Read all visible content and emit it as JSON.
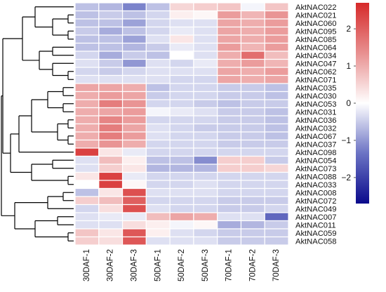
{
  "chart_data": {
    "type": "heatmap",
    "columns": [
      "30DAF-1",
      "30DAF-2",
      "30DAF-3",
      "50DAF-1",
      "50DAF-2",
      "50DAF-3",
      "70DAF-1",
      "70DAF-2",
      "70DAF-3"
    ],
    "rows": [
      "AktNAC022",
      "AktNAC021",
      "AktNAC060",
      "AktNAC095",
      "AktNAC085",
      "AktNAC064",
      "AktNAC034",
      "AktNAC047",
      "AktNAC062",
      "AktNAC071",
      "AktNAC035",
      "AktNAC030",
      "AktNAC053",
      "AktNAC031",
      "AktNAC036",
      "AktNAC032",
      "AktNAC067",
      "AktNAC037",
      "AktNAC098",
      "AktNAC054",
      "AktNAC073",
      "AktNAC088",
      "AktNAC033",
      "AktNAC008",
      "AktNAC072",
      "AktNAC049",
      "AktNAC007",
      "AktNAC011",
      "AktNAC059",
      "AktNAC058"
    ],
    "values": [
      [
        -0.6,
        -0.7,
        -1.2,
        -0.6,
        0.5,
        0.6,
        0.7,
        -0.1,
        0.7
      ],
      [
        -0.6,
        -0.5,
        -0.6,
        -0.4,
        0.2,
        0.1,
        1.2,
        0.9,
        1.3
      ],
      [
        -0.6,
        -0.6,
        -0.9,
        -0.4,
        -0.3,
        -0.3,
        1.1,
        1.0,
        1.2
      ],
      [
        -0.5,
        -0.8,
        -0.6,
        -0.4,
        -0.2,
        -0.3,
        1.1,
        1.0,
        1.2
      ],
      [
        -0.6,
        -0.6,
        -0.9,
        -0.3,
        0.3,
        -0.3,
        1.1,
        1.0,
        1.2
      ],
      [
        -0.6,
        -0.6,
        -0.7,
        -0.5,
        -0.2,
        -0.3,
        1.2,
        0.9,
        1.2
      ],
      [
        -0.4,
        -0.8,
        -0.5,
        -0.6,
        0.0,
        -0.3,
        1.0,
        1.8,
        0.8
      ],
      [
        -0.3,
        -0.5,
        -1.0,
        -0.3,
        -0.4,
        -0.2,
        1.0,
        1.2,
        0.9
      ],
      [
        -0.4,
        -0.5,
        -0.4,
        -0.3,
        -0.3,
        -0.3,
        1.1,
        1.0,
        1.2
      ],
      [
        -0.3,
        -0.3,
        -0.3,
        -0.3,
        -0.4,
        -0.4,
        1.1,
        1.0,
        1.1
      ],
      [
        1.1,
        1.1,
        1.0,
        -0.6,
        -0.4,
        -0.4,
        -0.5,
        -0.5,
        -0.6
      ],
      [
        1.0,
        1.2,
        1.1,
        -0.5,
        -0.4,
        -0.4,
        -0.5,
        -0.5,
        -0.6
      ],
      [
        1.0,
        1.6,
        1.3,
        -0.4,
        -0.4,
        -0.5,
        -0.6,
        -0.5,
        -0.5
      ],
      [
        1.0,
        1.1,
        1.2,
        -0.1,
        -0.2,
        -0.3,
        -0.5,
        -0.5,
        -0.6
      ],
      [
        1.0,
        1.5,
        1.2,
        -0.4,
        -0.4,
        -0.4,
        -0.5,
        -0.5,
        -0.6
      ],
      [
        1.0,
        1.6,
        1.1,
        -0.3,
        -0.4,
        -0.5,
        -0.5,
        -0.5,
        -0.6
      ],
      [
        1.0,
        1.6,
        1.2,
        -0.3,
        -0.4,
        -0.4,
        -0.5,
        -0.5,
        -0.6
      ],
      [
        1.0,
        1.3,
        1.0,
        -0.4,
        -0.4,
        -0.4,
        -0.5,
        -0.5,
        -0.5
      ],
      [
        2.4,
        0.3,
        -0.2,
        -0.4,
        -0.4,
        -0.4,
        -0.4,
        -0.4,
        -0.4
      ],
      [
        -0.3,
        0.8,
        0.2,
        -0.6,
        -0.6,
        -1.1,
        0.6,
        0.6,
        -0.5
      ],
      [
        -0.3,
        0.6,
        0.3,
        -0.7,
        -0.7,
        -0.7,
        0.6,
        0.6,
        0.5
      ],
      [
        0.3,
        2.4,
        -0.2,
        -0.4,
        -0.4,
        -0.4,
        -0.4,
        -0.4,
        -0.4
      ],
      [
        0.0,
        2.4,
        0.1,
        -0.4,
        -0.4,
        -0.3,
        -0.4,
        -0.4,
        -0.4
      ],
      [
        -0.6,
        0.3,
        2.2,
        -0.3,
        -0.3,
        -0.3,
        -0.4,
        -0.4,
        -0.4
      ],
      [
        0.6,
        0.8,
        2.0,
        -0.4,
        -0.4,
        -0.4,
        -0.5,
        -0.5,
        -0.5
      ],
      [
        -0.4,
        0.4,
        2.2,
        -0.3,
        -0.4,
        -0.4,
        -0.5,
        -0.5,
        -0.4
      ],
      [
        -0.3,
        -0.2,
        -0.2,
        0.8,
        1.1,
        1.0,
        -0.3,
        -0.3,
        -1.5
      ],
      [
        -0.3,
        -0.3,
        0.4,
        0.2,
        -0.1,
        0.1,
        -0.8,
        -0.7,
        -0.5
      ],
      [
        0.7,
        0.3,
        2.1,
        0.2,
        -0.3,
        -0.4,
        -0.5,
        -0.5,
        -0.5
      ],
      [
        0.6,
        0.4,
        2.1,
        -0.3,
        -0.3,
        -0.3,
        -0.5,
        -0.5,
        -0.5
      ]
    ],
    "colorbar": {
      "min": -2.7,
      "max": 2.7,
      "ticks": [
        2,
        1,
        0,
        -1,
        -2
      ],
      "tick_labels": [
        "2",
        "1",
        "0",
        "−1",
        "−2"
      ],
      "colors": [
        "#0a0a8c",
        "#6b73c4",
        "#ffffff",
        "#e89090",
        "#d62a2a"
      ]
    },
    "row_dendrogram": true,
    "grid_lines": "white"
  }
}
